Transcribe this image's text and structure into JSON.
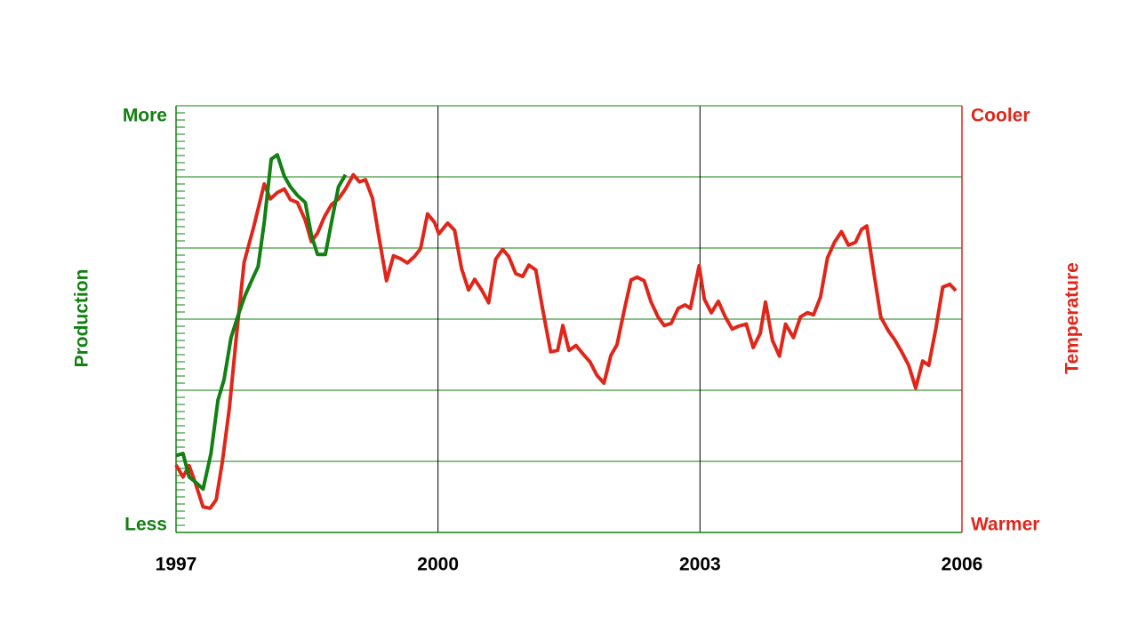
{
  "chart_data": {
    "type": "line",
    "ylabel": "Production",
    "y2label": "Temperature",
    "xlim": [
      1997,
      2006
    ],
    "xticks": [
      1997,
      2000,
      2003,
      2006
    ],
    "ylim": [
      0,
      6
    ],
    "yticks": [
      {
        "value": 0,
        "label": "Less"
      },
      {
        "value": 6,
        "label": "More"
      }
    ],
    "y2lim": [
      0,
      6
    ],
    "y2ticks": [
      {
        "value": 0,
        "label": "Warmer"
      },
      {
        "value": 6,
        "label": "Cooler"
      }
    ],
    "ygrid": [
      1,
      2,
      3,
      4,
      5
    ],
    "grid": true,
    "ycolor": "#128012",
    "y2color": "#e0261a",
    "series": [
      {
        "color": "#128012",
        "axis": "y",
        "x": [
          1997.0,
          1997.08,
          1997.15,
          1997.23,
          1997.31,
          1997.4,
          1997.48,
          1997.55,
          1997.63,
          1997.71,
          1997.79,
          1997.88,
          1997.94,
          1998.01,
          1998.09,
          1998.16,
          1998.24,
          1998.31,
          1998.39,
          1998.48,
          1998.55,
          1998.62,
          1998.71,
          1998.78,
          1998.86,
          1998.94
        ],
        "values": [
          1.08,
          1.11,
          0.78,
          0.7,
          0.61,
          1.11,
          1.86,
          2.15,
          2.74,
          3.05,
          3.33,
          3.58,
          3.74,
          4.36,
          5.25,
          5.31,
          5.01,
          4.86,
          4.74,
          4.64,
          4.18,
          3.91,
          3.91,
          4.36,
          4.86,
          5.03
        ]
      },
      {
        "color": "#e0261a",
        "axis": "y2",
        "x": [
          1997.0,
          1997.08,
          1997.15,
          1997.22,
          1997.31,
          1997.39,
          1997.46,
          1997.53,
          1997.61,
          1997.69,
          1997.78,
          1997.89,
          1998.01,
          1998.08,
          1998.16,
          1998.24,
          1998.31,
          1998.39,
          1998.48,
          1998.55,
          1998.62,
          1998.7,
          1998.78,
          1998.86,
          1998.94,
          1999.03,
          1999.1,
          1999.17,
          1999.25,
          1999.33,
          1999.41,
          1999.49,
          1999.57,
          1999.65,
          1999.73,
          1999.8,
          1999.88,
          1999.96,
          2000.01,
          2000.11,
          2000.19,
          2000.27,
          2000.35,
          2000.42,
          2000.5,
          2000.58,
          2000.66,
          2000.74,
          2000.81,
          2000.89,
          2000.97,
          2001.04,
          2001.12,
          2001.2,
          2001.29,
          2001.37,
          2001.43,
          2001.5,
          2001.58,
          2001.66,
          2001.74,
          2001.82,
          2001.9,
          2001.98,
          2002.05,
          2002.13,
          2002.21,
          2002.28,
          2002.36,
          2002.44,
          2002.52,
          2002.59,
          2002.67,
          2002.75,
          2002.83,
          2002.89,
          2002.99,
          2003.05,
          2003.13,
          2003.21,
          2003.29,
          2003.37,
          2003.44,
          2003.53,
          2003.61,
          2003.69,
          2003.75,
          2003.83,
          2003.91,
          2003.98,
          2004.07,
          2004.15,
          2004.23,
          2004.3,
          2004.38,
          2004.46,
          2004.54,
          2004.62,
          2004.7,
          2004.78,
          2004.85,
          2004.91,
          2004.99,
          2005.07,
          2005.16,
          2005.23,
          2005.31,
          2005.39,
          2005.47,
          2005.55,
          2005.62,
          2005.7,
          2005.78,
          2005.86,
          2005.93
        ],
        "values": [
          0.95,
          0.78,
          0.94,
          0.7,
          0.36,
          0.34,
          0.46,
          0.99,
          1.74,
          2.74,
          3.8,
          4.3,
          4.9,
          4.69,
          4.78,
          4.83,
          4.68,
          4.64,
          4.39,
          4.09,
          4.21,
          4.44,
          4.61,
          4.69,
          4.83,
          5.03,
          4.93,
          4.96,
          4.7,
          4.11,
          3.54,
          3.89,
          3.85,
          3.79,
          3.88,
          3.99,
          4.48,
          4.36,
          4.2,
          4.35,
          4.25,
          3.71,
          3.41,
          3.56,
          3.41,
          3.23,
          3.84,
          3.98,
          3.88,
          3.64,
          3.6,
          3.76,
          3.69,
          3.13,
          2.54,
          2.56,
          2.91,
          2.56,
          2.63,
          2.51,
          2.4,
          2.21,
          2.1,
          2.49,
          2.64,
          3.11,
          3.55,
          3.59,
          3.54,
          3.24,
          3.03,
          2.91,
          2.94,
          3.15,
          3.2,
          3.15,
          3.75,
          3.28,
          3.09,
          3.25,
          3.03,
          2.86,
          2.9,
          2.93,
          2.6,
          2.8,
          3.24,
          2.7,
          2.48,
          2.93,
          2.74,
          3.03,
          3.09,
          3.06,
          3.31,
          3.86,
          4.08,
          4.23,
          4.04,
          4.08,
          4.26,
          4.31,
          3.66,
          3.03,
          2.83,
          2.71,
          2.54,
          2.35,
          2.03,
          2.41,
          2.35,
          2.86,
          3.45,
          3.49,
          3.4
        ]
      }
    ]
  }
}
